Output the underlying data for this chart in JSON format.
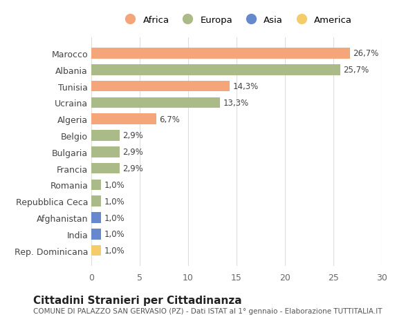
{
  "categories": [
    "Marocco",
    "Albania",
    "Tunisia",
    "Ucraina",
    "Algeria",
    "Belgio",
    "Bulgaria",
    "Francia",
    "Romania",
    "Repubblica Ceca",
    "Afghanistan",
    "India",
    "Rep. Dominicana"
  ],
  "values": [
    26.7,
    25.7,
    14.3,
    13.3,
    6.7,
    2.9,
    2.9,
    2.9,
    1.0,
    1.0,
    1.0,
    1.0,
    1.0
  ],
  "labels": [
    "26,7%",
    "25,7%",
    "14,3%",
    "13,3%",
    "6,7%",
    "2,9%",
    "2,9%",
    "2,9%",
    "1,0%",
    "1,0%",
    "1,0%",
    "1,0%",
    "1,0%"
  ],
  "continents": [
    "Africa",
    "Europa",
    "Africa",
    "Europa",
    "Africa",
    "Europa",
    "Europa",
    "Europa",
    "Europa",
    "Europa",
    "Asia",
    "Asia",
    "America"
  ],
  "colors": {
    "Africa": "#F4A57A",
    "Europa": "#AABB88",
    "Asia": "#6688CC",
    "America": "#F5CC6A"
  },
  "legend_order": [
    "Africa",
    "Europa",
    "Asia",
    "America"
  ],
  "title": "Cittadini Stranieri per Cittadinanza",
  "subtitle": "COMUNE DI PALAZZO SAN GERVASIO (PZ) - Dati ISTAT al 1° gennaio - Elaborazione TUTTITALIA.IT",
  "xlim": [
    0,
    30
  ],
  "xticks": [
    0,
    5,
    10,
    15,
    20,
    25,
    30
  ],
  "background_color": "#ffffff",
  "grid_color": "#dddddd"
}
